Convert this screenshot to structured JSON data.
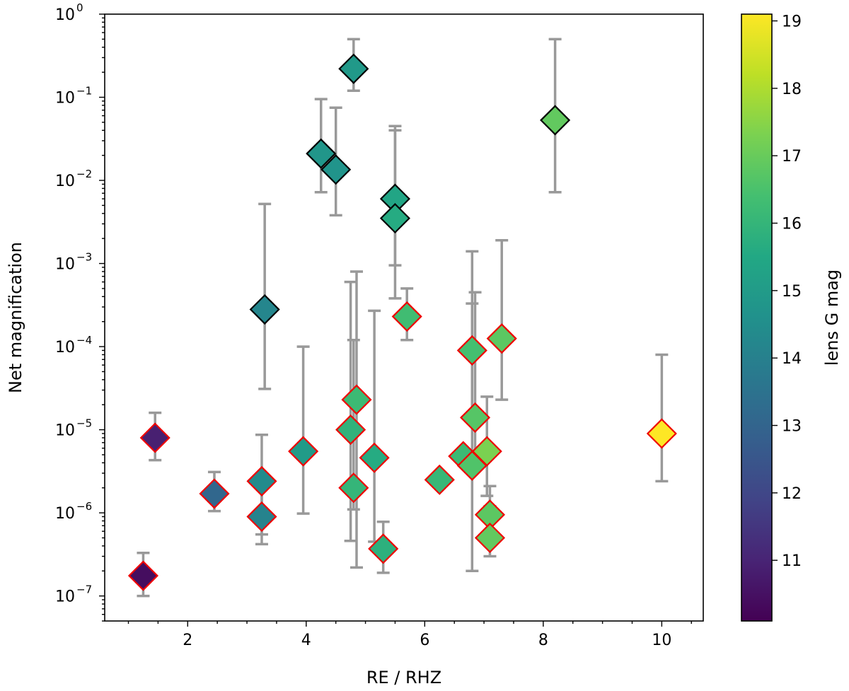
{
  "chart_data": {
    "type": "scatter",
    "xlabel": "RE / RHZ",
    "ylabel": "Net magnification",
    "xlim": [
      0.6,
      10.7
    ],
    "ylim": [
      5e-08,
      1.0
    ],
    "yscale": "log",
    "xticks": [
      {
        "value": 2,
        "label": "2"
      },
      {
        "value": 4,
        "label": "4"
      },
      {
        "value": 6,
        "label": "6"
      },
      {
        "value": 8,
        "label": "8"
      },
      {
        "value": 10,
        "label": "10"
      }
    ],
    "yticks": [
      {
        "exp": -7,
        "base": "10",
        "sup": "−7"
      },
      {
        "exp": -6,
        "base": "10",
        "sup": "−6"
      },
      {
        "exp": -5,
        "base": "10",
        "sup": "−5"
      },
      {
        "exp": -4,
        "base": "10",
        "sup": "−4"
      },
      {
        "exp": -3,
        "base": "10",
        "sup": "−3"
      },
      {
        "exp": -2,
        "base": "10",
        "sup": "−2"
      },
      {
        "exp": -1,
        "base": "10",
        "sup": "−1"
      },
      {
        "exp": 0,
        "base": "10",
        "sup": "0"
      }
    ],
    "colorbar": {
      "label": "lens G mag",
      "min": 10.1,
      "max": 19.1,
      "ticks": [
        {
          "value": 11,
          "label": "11"
        },
        {
          "value": 12,
          "label": "12"
        },
        {
          "value": 13,
          "label": "13"
        },
        {
          "value": 14,
          "label": "14"
        },
        {
          "value": 15,
          "label": "15"
        },
        {
          "value": 16,
          "label": "16"
        },
        {
          "value": 17,
          "label": "17"
        },
        {
          "value": 18,
          "label": "18"
        },
        {
          "value": 19,
          "label": "19"
        }
      ]
    },
    "errorbar_color": "#999999",
    "edge_colors": {
      "black": "#000000",
      "red": "#ee0000"
    },
    "series": [
      {
        "name": "black-edged",
        "edge": "black",
        "points": [
          {
            "x": 4.8,
            "y": 0.22,
            "lo": 0.12,
            "hi": 0.5,
            "g": 14.9
          },
          {
            "x": 8.2,
            "y": 0.053,
            "lo": 0.0072,
            "hi": 0.5,
            "g": 16.9
          },
          {
            "x": 4.25,
            "y": 0.021,
            "lo": 0.0072,
            "hi": 0.095,
            "g": 14.8
          },
          {
            "x": 4.5,
            "y": 0.0135,
            "lo": 0.0038,
            "hi": 0.075,
            "g": 14.7
          },
          {
            "x": 5.5,
            "y": 0.006,
            "lo": 0.00095,
            "hi": 0.045,
            "g": 15.4
          },
          {
            "x": 5.5,
            "y": 0.0035,
            "lo": 0.00038,
            "hi": 0.04,
            "g": 15.6
          },
          {
            "x": 3.3,
            "y": 0.00028,
            "lo": 3.1e-05,
            "hi": 0.0052,
            "g": 14.2
          }
        ]
      },
      {
        "name": "red-edged",
        "edge": "red",
        "points": [
          {
            "x": 5.7,
            "y": 0.00023,
            "lo": 0.00012,
            "hi": 0.0005,
            "g": 16.3
          },
          {
            "x": 7.3,
            "y": 0.000125,
            "lo": 2.3e-05,
            "hi": 0.0019,
            "g": 16.8
          },
          {
            "x": 6.8,
            "y": 9e-05,
            "lo": 1.3e-05,
            "hi": 0.0014,
            "g": 16.4
          },
          {
            "x": 4.85,
            "y": 2.3e-05,
            "lo": 2.2e-07,
            "hi": 0.0008,
            "g": 16.2
          },
          {
            "x": 6.85,
            "y": 1.4e-05,
            "lo": 3.5e-06,
            "hi": 0.00045,
            "g": 16.7
          },
          {
            "x": 4.75,
            "y": 1e-05,
            "lo": 4.6e-07,
            "hi": 0.0006,
            "g": 15.9
          },
          {
            "x": 10.0,
            "y": 9e-06,
            "lo": 2.4e-06,
            "hi": 8e-05,
            "g": 19.1
          },
          {
            "x": 1.45,
            "y": 8e-06,
            "lo": 4.3e-06,
            "hi": 1.6e-05,
            "g": 10.9
          },
          {
            "x": 3.95,
            "y": 5.5e-06,
            "lo": 9.8e-07,
            "hi": 0.0001,
            "g": 15.0
          },
          {
            "x": 7.05,
            "y": 5.5e-06,
            "lo": 1.6e-06,
            "hi": 2.5e-05,
            "g": 17.3
          },
          {
            "x": 6.65,
            "y": 4.8e-06,
            "lo": 3.9e-06,
            "hi": 5.9e-06,
            "g": 16.2
          },
          {
            "x": 5.15,
            "y": 4.6e-06,
            "lo": 4.5e-07,
            "hi": 0.00027,
            "g": 15.6
          },
          {
            "x": 6.8,
            "y": 3.7e-06,
            "lo": 2e-07,
            "hi": 0.00033,
            "g": 16.6
          },
          {
            "x": 6.25,
            "y": 2.5e-06,
            "lo": 2.1e-06,
            "hi": 3e-06,
            "g": 16.1
          },
          {
            "x": 3.25,
            "y": 2.4e-06,
            "lo": 5.5e-07,
            "hi": 8.7e-06,
            "g": 14.4
          },
          {
            "x": 4.8,
            "y": 2e-06,
            "lo": 1.1e-06,
            "hi": 0.00012,
            "g": 16.0
          },
          {
            "x": 2.45,
            "y": 1.7e-06,
            "lo": 1.05e-06,
            "hi": 3.1e-06,
            "g": 13.1
          },
          {
            "x": 7.1,
            "y": 9.5e-07,
            "lo": 4e-07,
            "hi": 2.1e-06,
            "g": 16.8
          },
          {
            "x": 3.25,
            "y": 9e-07,
            "lo": 4.2e-07,
            "hi": 2.3e-06,
            "g": 14.1
          },
          {
            "x": 7.1,
            "y": 5e-07,
            "lo": 3e-07,
            "hi": 1.2e-06,
            "g": 16.9
          },
          {
            "x": 5.3,
            "y": 3.7e-07,
            "lo": 1.9e-07,
            "hi": 7.8e-07,
            "g": 15.8
          },
          {
            "x": 1.25,
            "y": 1.75e-07,
            "lo": 1e-07,
            "hi": 3.3e-07,
            "g": 10.4
          }
        ]
      }
    ]
  }
}
